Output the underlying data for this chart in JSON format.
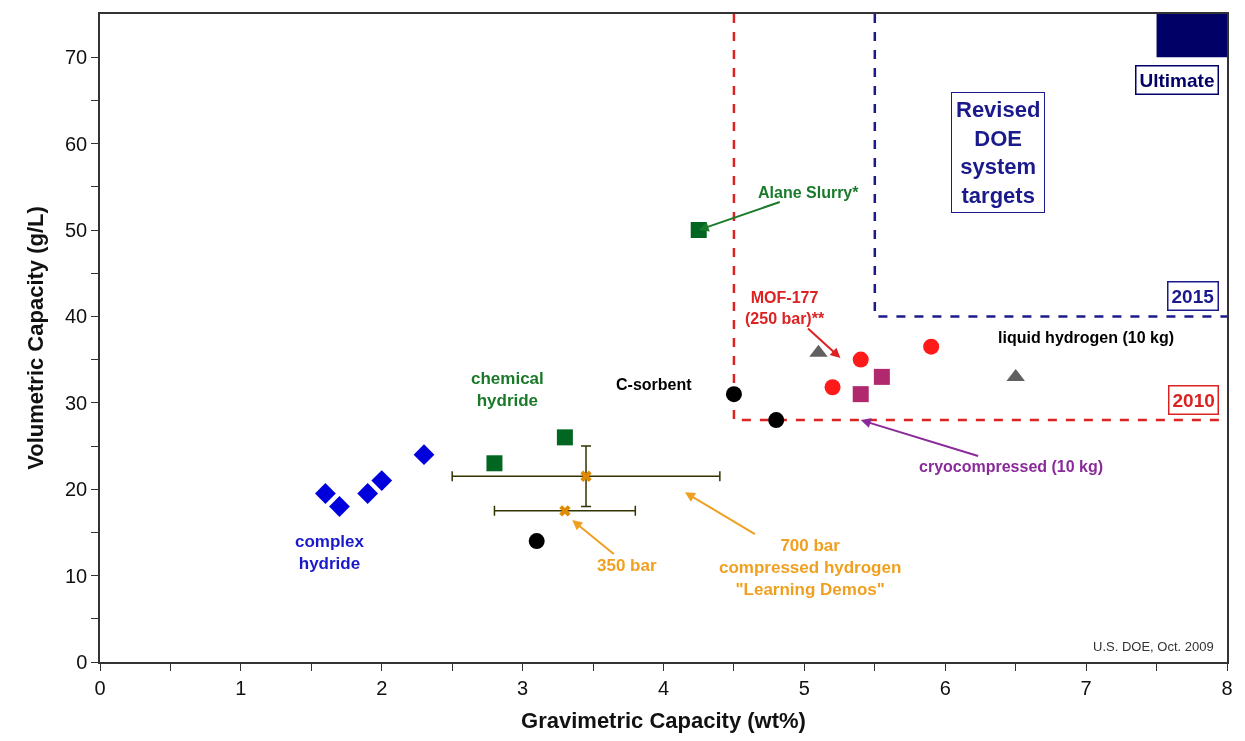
{
  "chart_data": {
    "type": "scatter",
    "xlabel": "Gravimetric Capacity (wt%)",
    "ylabel": "Volumetric Capacity (g/L)",
    "xlim": [
      0,
      8
    ],
    "ylim": [
      0,
      75
    ],
    "xticks": [
      0,
      {
        "value": 0.5,
        "label": null
      },
      1,
      {
        "value": 1.5,
        "label": null
      },
      2,
      {
        "value": 2.5,
        "label": null
      },
      3,
      {
        "value": 3.5,
        "label": null
      },
      4,
      {
        "value": 4.5,
        "label": null
      },
      5,
      {
        "value": 5.5,
        "label": null
      },
      6,
      {
        "value": 6.5,
        "label": null
      },
      7,
      {
        "value": 7.5,
        "label": null
      },
      8
    ],
    "yticks": [
      0,
      {
        "value": 5,
        "label": null
      },
      10,
      {
        "value": 15,
        "label": null
      },
      20,
      {
        "value": 25,
        "label": null
      },
      30,
      {
        "value": 35,
        "label": null
      },
      40,
      {
        "value": 45,
        "label": null
      },
      50,
      {
        "value": 55,
        "label": null
      },
      60,
      {
        "value": 65,
        "label": null
      },
      70
    ],
    "series": [
      {
        "type": "line",
        "name": "2010",
        "color": "#dd2222",
        "line_style": "dashed",
        "x": [
          4.5,
          4.5,
          8
        ],
        "values": [
          75,
          28,
          28
        ]
      },
      {
        "type": "line",
        "name": "2015",
        "color": "#1a1a8c",
        "line_style": "dashed",
        "x": [
          5.5,
          5.5,
          8
        ],
        "values": [
          75,
          40,
          40
        ]
      },
      {
        "type": "bar",
        "name": "Ultimate",
        "color": "#000066",
        "x": [
          7.75
        ],
        "values": [
          5
        ],
        "base": [
          70
        ]
      },
      {
        "color": "#0000dd",
        "marker": "diamond",
        "x": [
          1.6,
          1.7,
          1.9,
          2.0,
          2.3
        ],
        "values": [
          19.5,
          18,
          19.5,
          21,
          24
        ]
      },
      {
        "color": "#006622",
        "marker": "square",
        "x": [
          2.8,
          3.3
        ],
        "values": [
          23,
          26
        ]
      },
      {
        "color": "#006622",
        "marker": "square",
        "x": [
          4.25
        ],
        "values": [
          50
        ]
      },
      {
        "color": "#000000",
        "marker": "circle",
        "x": [
          3.1,
          4.5,
          4.8
        ],
        "values": [
          14,
          31,
          28
        ]
      },
      {
        "color": "#e08a00",
        "marker": "cross",
        "x": [
          3.45
        ],
        "values": [
          21.5
        ],
        "xerrors": [
          [
            2.5,
            4.4
          ]
        ],
        "errors": [
          [
            18,
            25
          ]
        ]
      },
      {
        "color": "#e08a00",
        "marker": "cross",
        "x": [
          3.3
        ],
        "values": [
          17.5
        ],
        "xerrors": [
          [
            2.8,
            3.8
          ]
        ]
      },
      {
        "color": "#ff1a1a",
        "marker": "circle",
        "x": [
          5.2,
          5.4,
          5.9
        ],
        "values": [
          31.8,
          35,
          36.5
        ]
      },
      {
        "color": "#b0286e",
        "marker": "square",
        "x": [
          5.4,
          5.55
        ],
        "values": [
          31,
          33
        ]
      },
      {
        "color": "#606060",
        "marker": "triangle",
        "x": [
          5.1,
          6.5
        ],
        "values": [
          35.8,
          33
        ]
      }
    ],
    "annotations": [
      {
        "text": "Alane Slurry*",
        "x": 4.25,
        "y": 50
      },
      "MOF-177\n(250 bar)**",
      {
        "text": "cryocompressed (10 kg)",
        "x": 5.4,
        "y": 28
      },
      "700 bar\ncompressed hydrogen\n\"Learning Demos\"",
      "350 bar",
      "complex\nhydride",
      "chemical\nhydride",
      "C-sorbent",
      "liquid hydrogen (10 kg)",
      "Revised\nDOE\nsystem\ntargets",
      "U.S. DOE, Oct. 2009"
    ]
  }
}
